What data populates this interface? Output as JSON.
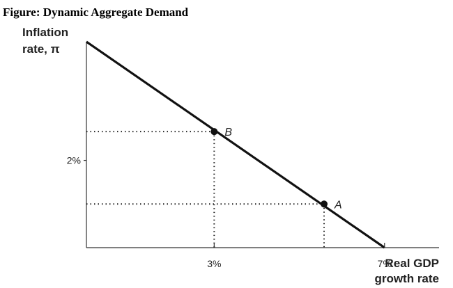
{
  "figure_title": "Figure: Dynamic Aggregate Demand",
  "chart_data": {
    "type": "line",
    "title": "Figure: Dynamic Aggregate Demand",
    "ylabel_line1": "Inflation",
    "ylabel_line2": "rate, π",
    "xlabel_line1": "Real GDP",
    "xlabel_line2": "growth rate",
    "x_ticks": [
      {
        "value": 3,
        "label": "3%"
      },
      {
        "value": 7,
        "label": "7%"
      }
    ],
    "y_ticks": [
      {
        "value": 2,
        "label": "2%"
      }
    ],
    "xlim": [
      0,
      8.28
    ],
    "ylim": [
      0,
      4.72
    ],
    "series": [
      {
        "x": [
          0,
          7
        ],
        "y": [
          4.72,
          0
        ]
      }
    ],
    "points": [
      {
        "label": "B",
        "x": 3,
        "y": 2.66
      },
      {
        "label": "A",
        "x": 5.58,
        "y": 1
      }
    ],
    "grid": false
  }
}
